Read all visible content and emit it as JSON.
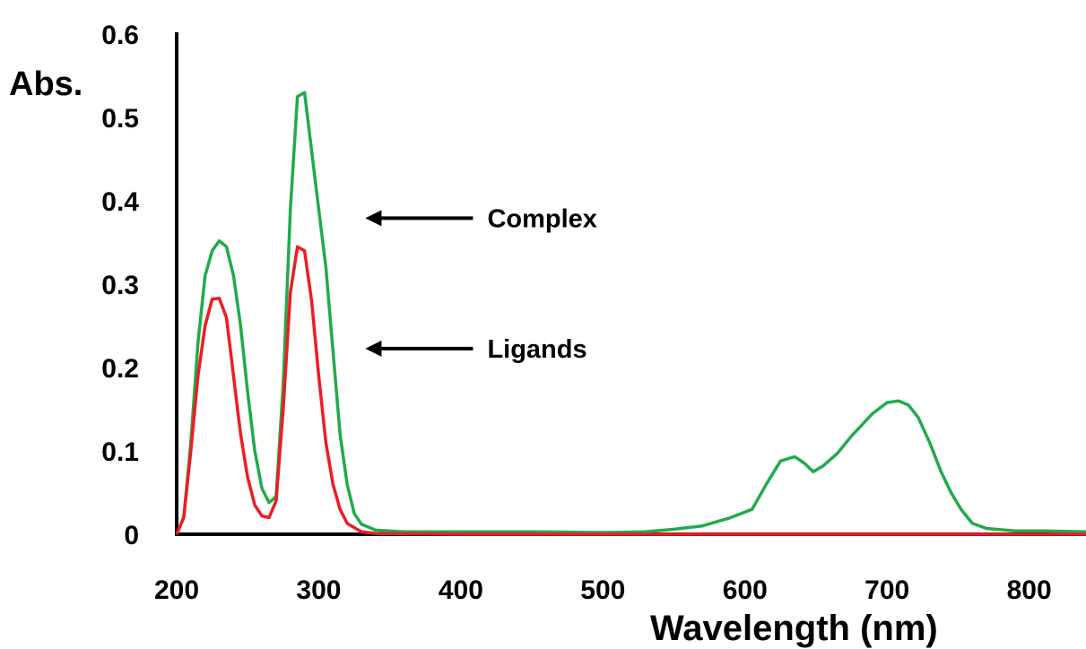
{
  "chart_data": {
    "type": "line",
    "title": "",
    "xlabel": "Wavelength (nm)",
    "ylabel": "Abs.",
    "xlim": [
      200,
      840
    ],
    "ylim": [
      0,
      0.6
    ],
    "x_ticks": [
      "200",
      "300",
      "400",
      "500",
      "600",
      "700",
      "800"
    ],
    "y_ticks": [
      "0",
      "0.1",
      "0.2",
      "0.3",
      "0.4",
      "0.5",
      "0.6"
    ],
    "grid": false,
    "legend": "none",
    "series": [
      {
        "name": "Complex",
        "color": "#22aa4b",
        "points": [
          [
            200,
            0.0
          ],
          [
            205,
            0.02
          ],
          [
            210,
            0.11
          ],
          [
            215,
            0.23
          ],
          [
            220,
            0.31
          ],
          [
            225,
            0.34
          ],
          [
            230,
            0.352
          ],
          [
            235,
            0.345
          ],
          [
            240,
            0.31
          ],
          [
            245,
            0.25
          ],
          [
            250,
            0.17
          ],
          [
            255,
            0.1
          ],
          [
            260,
            0.055
          ],
          [
            265,
            0.038
          ],
          [
            270,
            0.045
          ],
          [
            275,
            0.18
          ],
          [
            280,
            0.39
          ],
          [
            285,
            0.525
          ],
          [
            290,
            0.53
          ],
          [
            295,
            0.46
          ],
          [
            300,
            0.39
          ],
          [
            305,
            0.32
          ],
          [
            310,
            0.22
          ],
          [
            315,
            0.12
          ],
          [
            320,
            0.06
          ],
          [
            325,
            0.025
          ],
          [
            330,
            0.012
          ],
          [
            340,
            0.005
          ],
          [
            360,
            0.003
          ],
          [
            400,
            0.003
          ],
          [
            450,
            0.003
          ],
          [
            500,
            0.002
          ],
          [
            530,
            0.003
          ],
          [
            550,
            0.006
          ],
          [
            570,
            0.01
          ],
          [
            590,
            0.02
          ],
          [
            605,
            0.03
          ],
          [
            615,
            0.06
          ],
          [
            625,
            0.088
          ],
          [
            635,
            0.093
          ],
          [
            642,
            0.085
          ],
          [
            648,
            0.075
          ],
          [
            655,
            0.082
          ],
          [
            665,
            0.097
          ],
          [
            675,
            0.118
          ],
          [
            690,
            0.145
          ],
          [
            700,
            0.158
          ],
          [
            708,
            0.16
          ],
          [
            715,
            0.155
          ],
          [
            722,
            0.14
          ],
          [
            730,
            0.11
          ],
          [
            738,
            0.075
          ],
          [
            745,
            0.05
          ],
          [
            752,
            0.03
          ],
          [
            760,
            0.013
          ],
          [
            770,
            0.007
          ],
          [
            790,
            0.004
          ],
          [
            810,
            0.004
          ],
          [
            840,
            0.003
          ]
        ]
      },
      {
        "name": "Ligands",
        "color": "#ee1c24",
        "points": [
          [
            200,
            0.0
          ],
          [
            205,
            0.02
          ],
          [
            210,
            0.1
          ],
          [
            215,
            0.19
          ],
          [
            220,
            0.25
          ],
          [
            225,
            0.282
          ],
          [
            230,
            0.283
          ],
          [
            235,
            0.26
          ],
          [
            240,
            0.19
          ],
          [
            245,
            0.12
          ],
          [
            250,
            0.068
          ],
          [
            255,
            0.035
          ],
          [
            260,
            0.022
          ],
          [
            265,
            0.02
          ],
          [
            270,
            0.04
          ],
          [
            275,
            0.15
          ],
          [
            280,
            0.29
          ],
          [
            285,
            0.345
          ],
          [
            290,
            0.34
          ],
          [
            295,
            0.28
          ],
          [
            300,
            0.19
          ],
          [
            305,
            0.11
          ],
          [
            310,
            0.06
          ],
          [
            315,
            0.03
          ],
          [
            320,
            0.013
          ],
          [
            330,
            0.003
          ],
          [
            340,
            0.001
          ],
          [
            400,
            0.0
          ],
          [
            600,
            0.0
          ],
          [
            840,
            0.0
          ]
        ]
      }
    ],
    "annotations": [
      {
        "text": "Complex",
        "arrow_to_x": 300,
        "arrow_to_y": 0.42
      },
      {
        "text": "Ligands",
        "arrow_to_x": 300,
        "arrow_to_y": 0.27
      }
    ]
  }
}
